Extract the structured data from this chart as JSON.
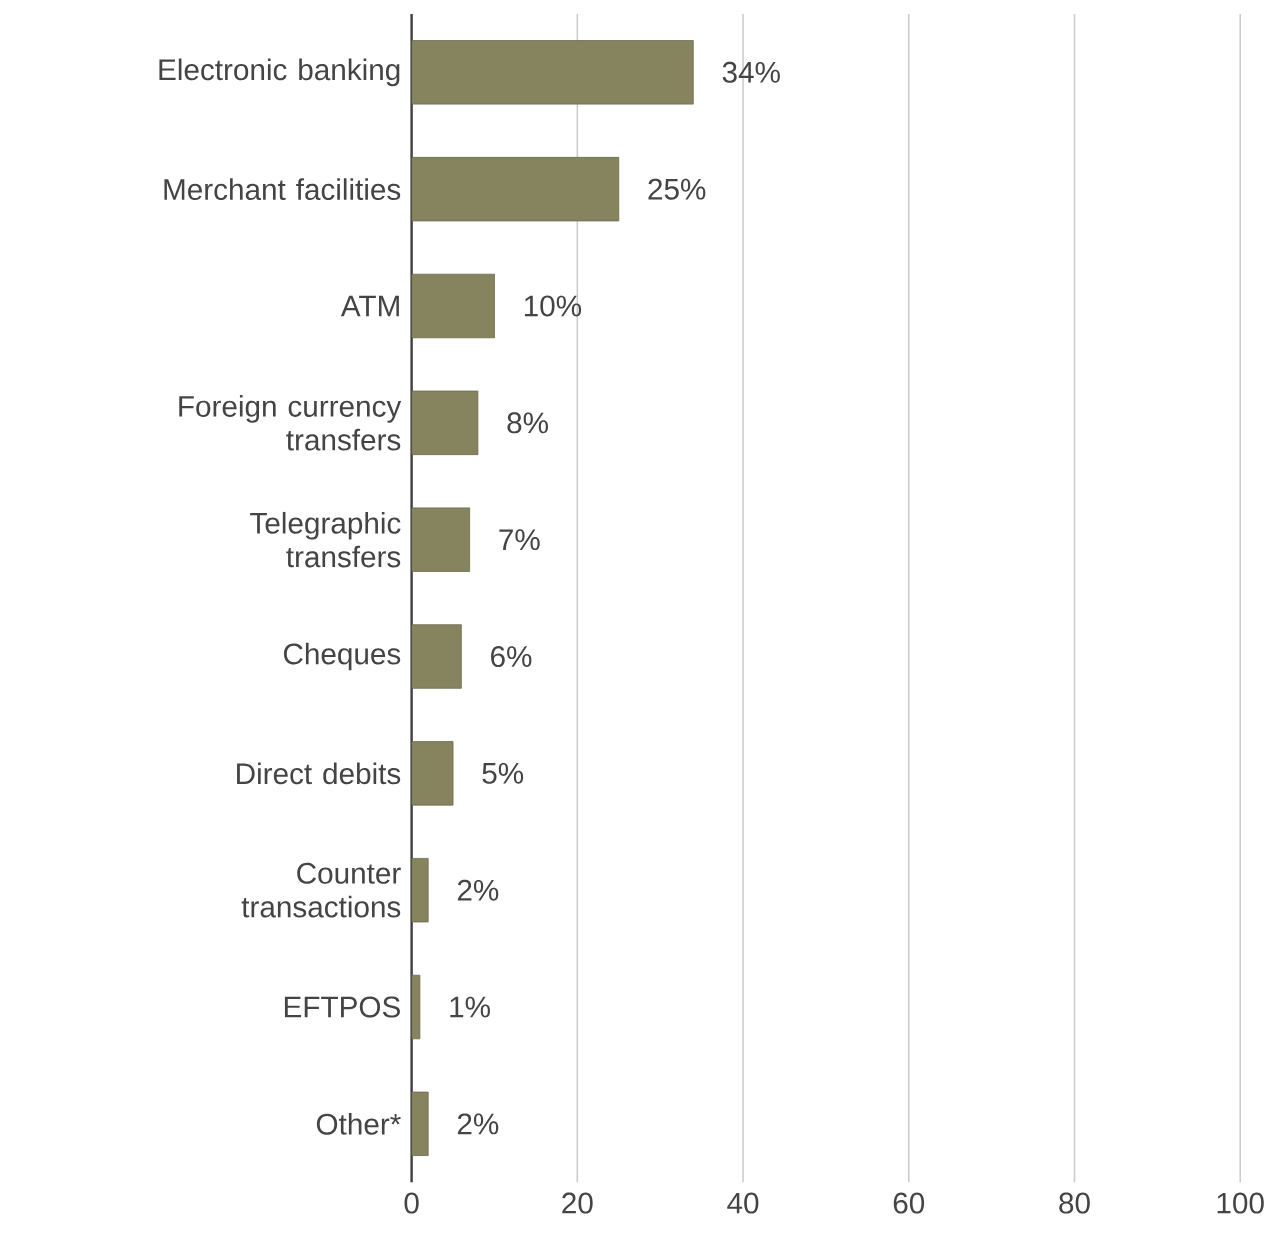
{
  "chart_data": {
    "type": "bar",
    "orientation": "horizontal",
    "categories": [
      "Electronic banking",
      "Merchant facilities",
      "ATM",
      "Foreign currency transfers",
      "Telegraphic transfers",
      "Cheques",
      "Direct debits",
      "Counter transactions",
      "EFTPOS",
      "Other*"
    ],
    "values": [
      34,
      25,
      10,
      8,
      7,
      6,
      5,
      2,
      1,
      2
    ],
    "value_labels": [
      "34%",
      "25%",
      "10%",
      "8%",
      "7%",
      "6%",
      "5%",
      "2%",
      "1%",
      "2%"
    ],
    "color": "#85845f",
    "xlim": [
      0,
      100
    ],
    "xticks": [
      0,
      20,
      40,
      60,
      80,
      100
    ],
    "grid": "x"
  }
}
